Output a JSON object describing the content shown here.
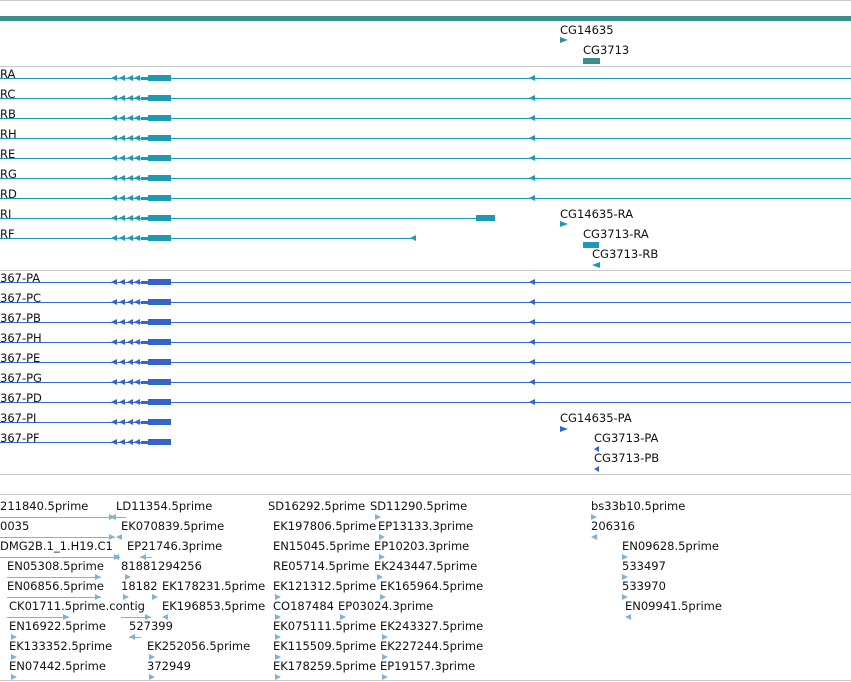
{
  "colors": {
    "top_bar": "#3d8c8c",
    "gene": "#3d8c8c",
    "transcript_teal": "#1a9bb5",
    "transcript_blue": "#3366cc",
    "est": "#7fb2d9",
    "separator": "#c8c8c8"
  },
  "gene_track": {
    "labels": [
      "CG14635",
      "CG3713"
    ]
  },
  "transcripts_teal": {
    "row_labels": [
      "RA",
      "RC",
      "RB",
      "RH",
      "RE",
      "RG",
      "RD",
      "RI",
      "RF"
    ],
    "right_labels": [
      "CG14635-RA",
      "CG3713-RA",
      "CG3713-RB"
    ]
  },
  "transcripts_blue": {
    "row_labels": [
      "367-PA",
      "367-PC",
      "367-PB",
      "367-PH",
      "367-PE",
      "367-PG",
      "367-PD",
      "367-PI",
      "367-PF"
    ],
    "right_labels": [
      "CG14635-PA",
      "CG3713-PA",
      "CG3713-PB"
    ]
  },
  "ests": {
    "labels": [
      "211840.5prime",
      "LD11354.5prime",
      "SD16292.5prime",
      "SD11290.5prime",
      "bs33b10.5prime",
      "0035",
      "EK070839.5prime",
      "EK197806.5prime",
      "EP13133.3prime",
      "206316",
      "DMG2B.1_1.H19.C1",
      "EP21746.3prime",
      "EN15045.5prime",
      "EP10203.3prime",
      "EN09628.5prime",
      "EN05308.5prime",
      "81881",
      "294256",
      "RE05714.5prime",
      "EK243447.5prime",
      "533497",
      "EN06856.5prime",
      "18182",
      "EK178231.5prime",
      "EK121312.5prime",
      "EK165964.5prime",
      "533970",
      "CK01711.5prime.contig",
      "EK196853.5prime",
      "CO187484",
      "EP03024.3prime",
      "EN09941.5prime",
      "EN16922.5prime",
      "527399",
      "EK075111.5prime",
      "EK243327.5prime",
      "EK133352.5prime",
      "EK252056.5prime",
      "EK115509.5prime",
      "EK227244.5prime",
      "EN07442.5prime",
      "372949",
      "EK178259.5prime",
      "EP19157.3prime"
    ]
  }
}
